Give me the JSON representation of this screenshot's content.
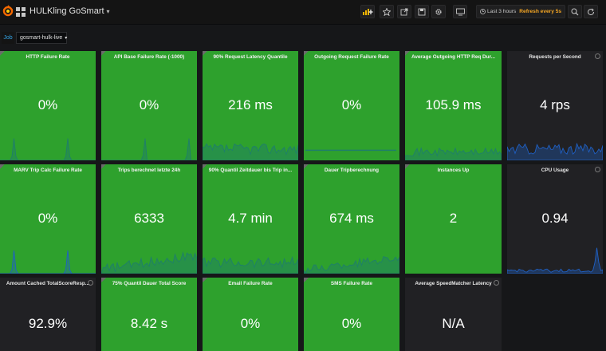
{
  "dashboard": {
    "title": "HULKling GoSmart",
    "caret": "▾"
  },
  "toolbar": {
    "icons": [
      "add-panel-icon",
      "star-icon",
      "share-icon",
      "save-icon",
      "settings-icon",
      "tv-mode-icon",
      "zoom-out-icon",
      "refresh-icon"
    ],
    "time_range": "Last 3 hours",
    "refresh_label": "Refresh every 5s"
  },
  "variables": {
    "job_label": "Job",
    "job_value": "gosmart-hulk-live",
    "caret": "▾"
  },
  "colors": {
    "ok": "#2ea12d",
    "neutral": "#212124",
    "spark_green": "#1f7f6a",
    "spark_blue": "#1f60c4"
  },
  "panels": [
    {
      "title": "HTTP Failure Rate",
      "value": "0%",
      "color": "green"
    },
    {
      "title": "API Base Failure Rate (-1000)",
      "value": "0%",
      "color": "green"
    },
    {
      "title": "90% Request Latency Quantile",
      "value": "216 ms",
      "color": "green"
    },
    {
      "title": "Outgoing Request Failure Rate",
      "value": "0%",
      "color": "green"
    },
    {
      "title": "Average Outgoing HTTP Req Dur...",
      "value": "105.9 ms",
      "color": "green"
    },
    {
      "title": "Requests per Second",
      "value": "4 rps",
      "color": "dark"
    },
    {
      "title": "MARV Trip Calc Failure Rate",
      "value": "0%",
      "color": "green"
    },
    {
      "title": "Trips berechnet letzte 24h",
      "value": "6333",
      "color": "green"
    },
    {
      "title": "90% Quantil Zeitdauer bis Trip in...",
      "value": "4.7 min",
      "color": "green"
    },
    {
      "title": "Dauer Tripberechnung",
      "value": "674 ms",
      "color": "green"
    },
    {
      "title": "Instances Up",
      "value": "2",
      "color": "green"
    },
    {
      "title": "CPU Usage",
      "value": "0.94",
      "color": "dark"
    },
    {
      "title": "Amount Cached TotalScoreResp...",
      "value": "92.9%",
      "color": "dark"
    },
    {
      "title": "75% Quantil Dauer Total Score",
      "value": "8.42 s",
      "color": "green"
    },
    {
      "title": "Email Failure Rate",
      "value": "0%",
      "color": "green"
    },
    {
      "title": "SMS Failure Rate",
      "value": "0%",
      "color": "green"
    },
    {
      "title": "Average SpeedMatcher Latency",
      "value": "N/A",
      "color": "dark"
    }
  ]
}
